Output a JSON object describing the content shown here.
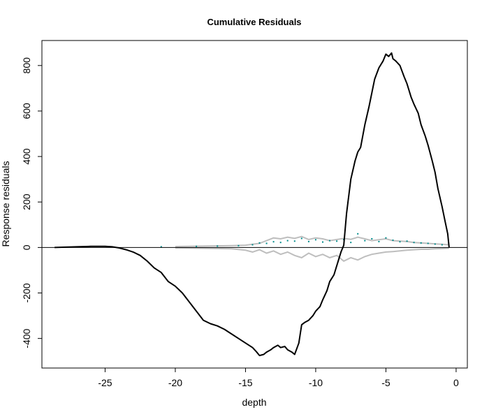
{
  "chart_data": {
    "type": "line",
    "title": "Cumulative Residuals",
    "xlabel": "depth",
    "ylabel": "Response  residuals",
    "xlim": [
      -29.5,
      0.8
    ],
    "ylim": [
      -530,
      910
    ],
    "xticks": [
      -25,
      -20,
      -15,
      -10,
      -5,
      0
    ],
    "yticks": [
      -400,
      -200,
      0,
      200,
      400,
      600,
      800
    ],
    "reference_line_y": 0,
    "grid": false,
    "legend": "none",
    "colors": {
      "cumulative": "#000000",
      "residual_bands": "#bebebe",
      "residual_points": "#008b8b"
    },
    "series": [
      {
        "role": "cumulative",
        "x": [
          -28.6,
          -27,
          -26,
          -25,
          -24.5,
          -24,
          -23.5,
          -23,
          -22.5,
          -22,
          -21.5,
          -21,
          -20.5,
          -20,
          -19.5,
          -19,
          -18.5,
          -18,
          -17.5,
          -17,
          -16.5,
          -16,
          -15.5,
          -15,
          -14.5,
          -14.2,
          -14,
          -13.7,
          -13.5,
          -13.2,
          -13,
          -12.7,
          -12.5,
          -12.2,
          -12,
          -11.7,
          -11.5,
          -11.2,
          -11,
          -10.8,
          -10.5,
          -10.2,
          -10,
          -9.7,
          -9.5,
          -9.2,
          -9,
          -8.7,
          -8.5,
          -8.2,
          -8,
          -7.8,
          -7.5,
          -7.2,
          -7,
          -6.8,
          -6.5,
          -6.2,
          -6,
          -5.8,
          -5.5,
          -5.2,
          -5,
          -4.8,
          -4.6,
          -4.5,
          -4.3,
          -4,
          -3.7,
          -3.5,
          -3.2,
          -3,
          -2.7,
          -2.5,
          -2.2,
          -2,
          -1.7,
          -1.5,
          -1.3,
          -1,
          -0.8,
          -0.6,
          -0.5
        ],
        "y": [
          0,
          3,
          5,
          5,
          3,
          -2,
          -10,
          -20,
          -35,
          -60,
          -90,
          -110,
          -150,
          -170,
          -200,
          -240,
          -280,
          -320,
          -335,
          -345,
          -360,
          -380,
          -400,
          -420,
          -440,
          -460,
          -475,
          -470,
          -460,
          -450,
          -440,
          -430,
          -440,
          -435,
          -450,
          -460,
          -470,
          -420,
          -340,
          -330,
          -320,
          -300,
          -280,
          -260,
          -230,
          -190,
          -150,
          -120,
          -80,
          -20,
          10,
          150,
          300,
          380,
          420,
          440,
          540,
          620,
          680,
          740,
          790,
          820,
          850,
          840,
          855,
          830,
          820,
          800,
          750,
          720,
          660,
          630,
          590,
          540,
          490,
          450,
          380,
          330,
          260,
          180,
          120,
          60,
          0
        ]
      },
      {
        "role": "residual_bands",
        "x": [
          -20,
          -16,
          -15,
          -14.5,
          -14,
          -13.5,
          -13,
          -12.5,
          -12,
          -11.5,
          -11,
          -10.5,
          -10,
          -9.5,
          -9,
          -8.5,
          -8,
          -7.5,
          -7,
          -6.5,
          -6,
          -5.5,
          -5,
          -4.5,
          -4,
          -3.5,
          -3,
          -2.5,
          -2,
          -1.5,
          -1,
          -0.5
        ],
        "upper": [
          4,
          8,
          10,
          14,
          18,
          30,
          42,
          38,
          45,
          40,
          48,
          35,
          42,
          38,
          30,
          35,
          40,
          36,
          45,
          38,
          30,
          34,
          38,
          30,
          28,
          26,
          22,
          20,
          18,
          16,
          14,
          12
        ],
        "lower": [
          -2,
          -6,
          -12,
          -20,
          -10,
          -25,
          -15,
          -30,
          -20,
          -35,
          -45,
          -25,
          -40,
          -30,
          -45,
          -35,
          -60,
          -45,
          -55,
          -40,
          -30,
          -25,
          -20,
          -18,
          -15,
          -12,
          -10,
          -8,
          -8,
          -6,
          -5,
          -3
        ]
      },
      {
        "role": "residual_points",
        "x": [
          -21,
          -18.5,
          -17,
          -15.5,
          -14.5,
          -14,
          -13.5,
          -13,
          -12.5,
          -12,
          -11.5,
          -11,
          -10.5,
          -10,
          -9.5,
          -9,
          -8.5,
          -8,
          -7.5,
          -7,
          -6.5,
          -6,
          -5.5,
          -5,
          -4.5,
          -4,
          -3.5,
          -3,
          -2.5,
          -2,
          -1.5,
          -1
        ],
        "y": [
          3,
          5,
          6,
          8,
          12,
          20,
          18,
          25,
          22,
          30,
          28,
          40,
          26,
          34,
          24,
          30,
          28,
          35,
          22,
          60,
          30,
          38,
          26,
          42,
          32,
          25,
          28,
          22,
          20,
          18,
          15,
          12
        ]
      }
    ]
  }
}
